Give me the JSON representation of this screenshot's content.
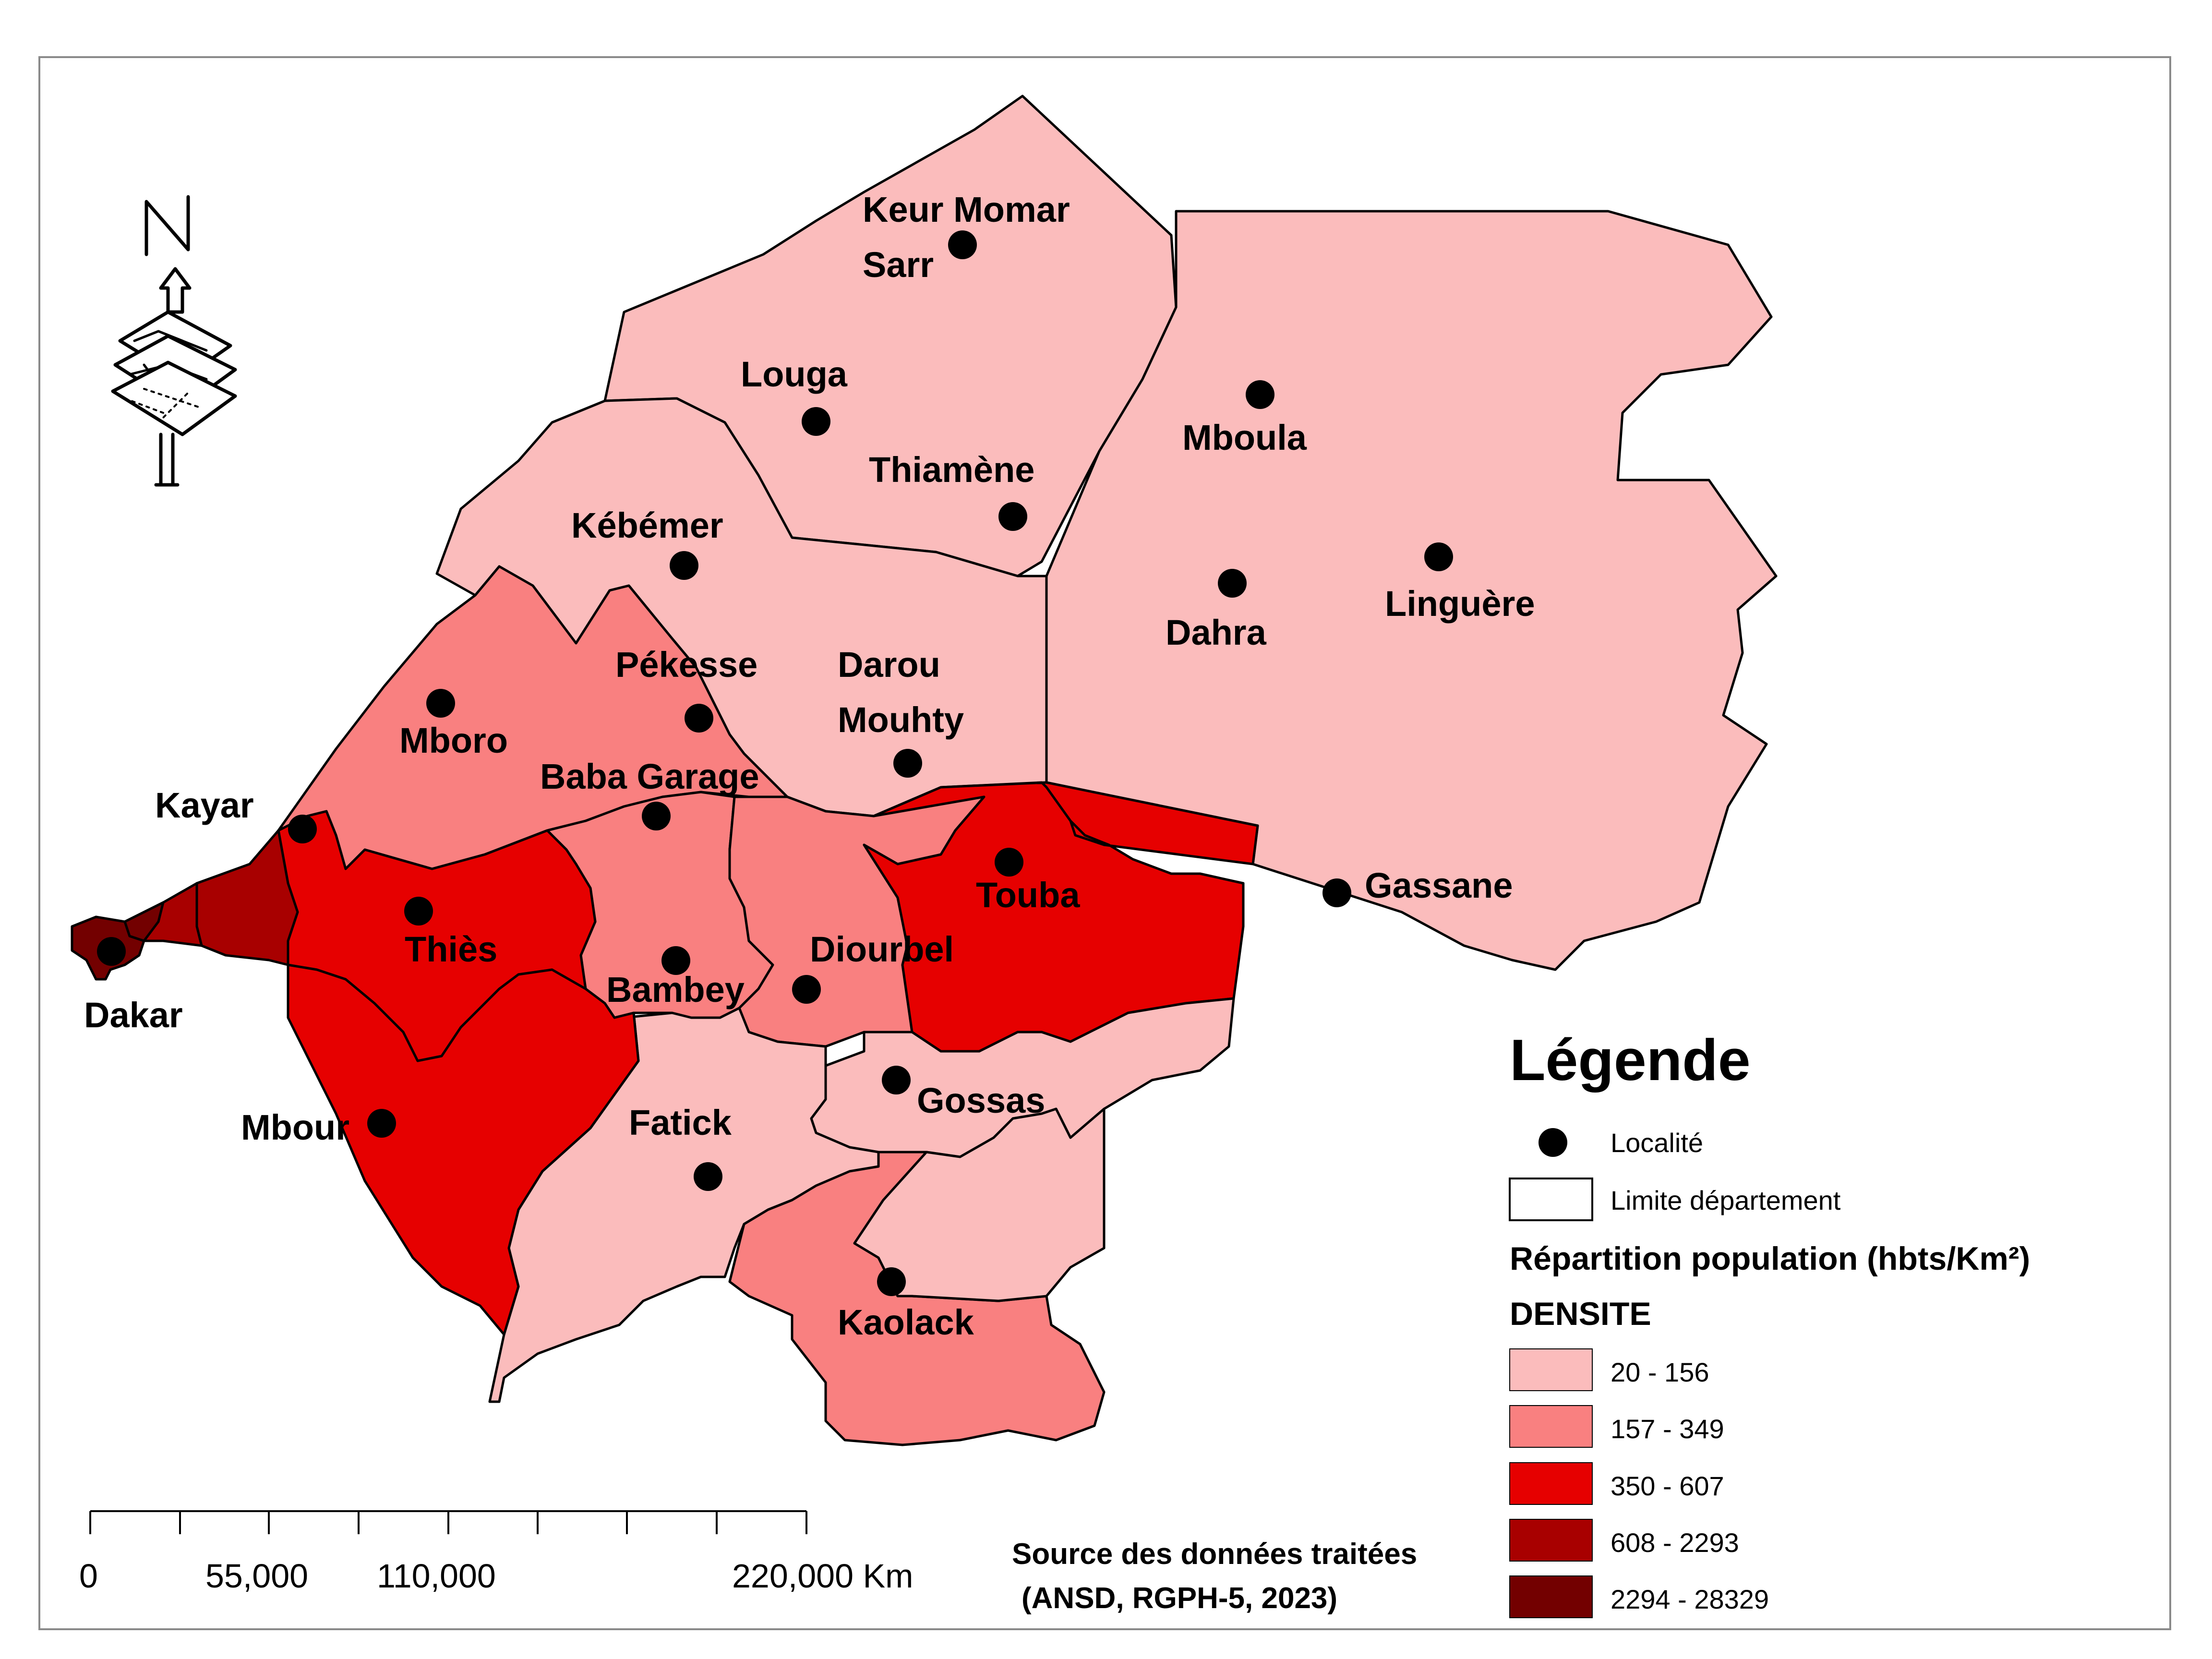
{
  "colors": {
    "class1": "#fbbcbc",
    "class2": "#f98080",
    "class3": "#e60000",
    "class4": "#a80000",
    "class5": "#730000",
    "background": "#ffffff",
    "border": "#000000"
  },
  "north_arrow": {
    "letter": "N",
    "icon": "north-arrow-icon"
  },
  "localities": [
    {
      "name": "Keur Momar",
      "name2": "Sarr"
    },
    {
      "name": "Louga"
    },
    {
      "name": "Thiamène"
    },
    {
      "name": "Mboula"
    },
    {
      "name": "Kébémer"
    },
    {
      "name": "Dahra"
    },
    {
      "name": "Linguère"
    },
    {
      "name": "Pékesse"
    },
    {
      "name": "Darou",
      "name2": "Mouhty"
    },
    {
      "name": "Mboro"
    },
    {
      "name": "Baba Garage"
    },
    {
      "name": "Kayar"
    },
    {
      "name": "Touba"
    },
    {
      "name": "Gassane"
    },
    {
      "name": "Thiès"
    },
    {
      "name": "Diourbel"
    },
    {
      "name": "Bambey"
    },
    {
      "name": "Dakar"
    },
    {
      "name": "Gossas"
    },
    {
      "name": "Fatick"
    },
    {
      "name": "Mbour"
    },
    {
      "name": "Kaolack"
    }
  ],
  "legend": {
    "title": "Légende",
    "point_label": "Localité",
    "boundary_label": "Limite département",
    "population_title": "Répartition population (hbts/Km²)",
    "field_name": "DENSITE",
    "classes": [
      {
        "label": "20 - 156",
        "color": "#fbbcbc"
      },
      {
        "label": "157 - 349",
        "color": "#f98080"
      },
      {
        "label": "350 - 607",
        "color": "#e60000"
      },
      {
        "label": "608 - 2293",
        "color": "#a80000"
      },
      {
        "label": "2294 - 28329",
        "color": "#730000"
      }
    ]
  },
  "scale_bar": {
    "labels": [
      "0",
      "55,000",
      "110,000",
      "220,000 Km"
    ]
  },
  "source": {
    "line1": "Source des données traitées",
    "line2": "(ANSD, RGPH-5, 2023)"
  }
}
